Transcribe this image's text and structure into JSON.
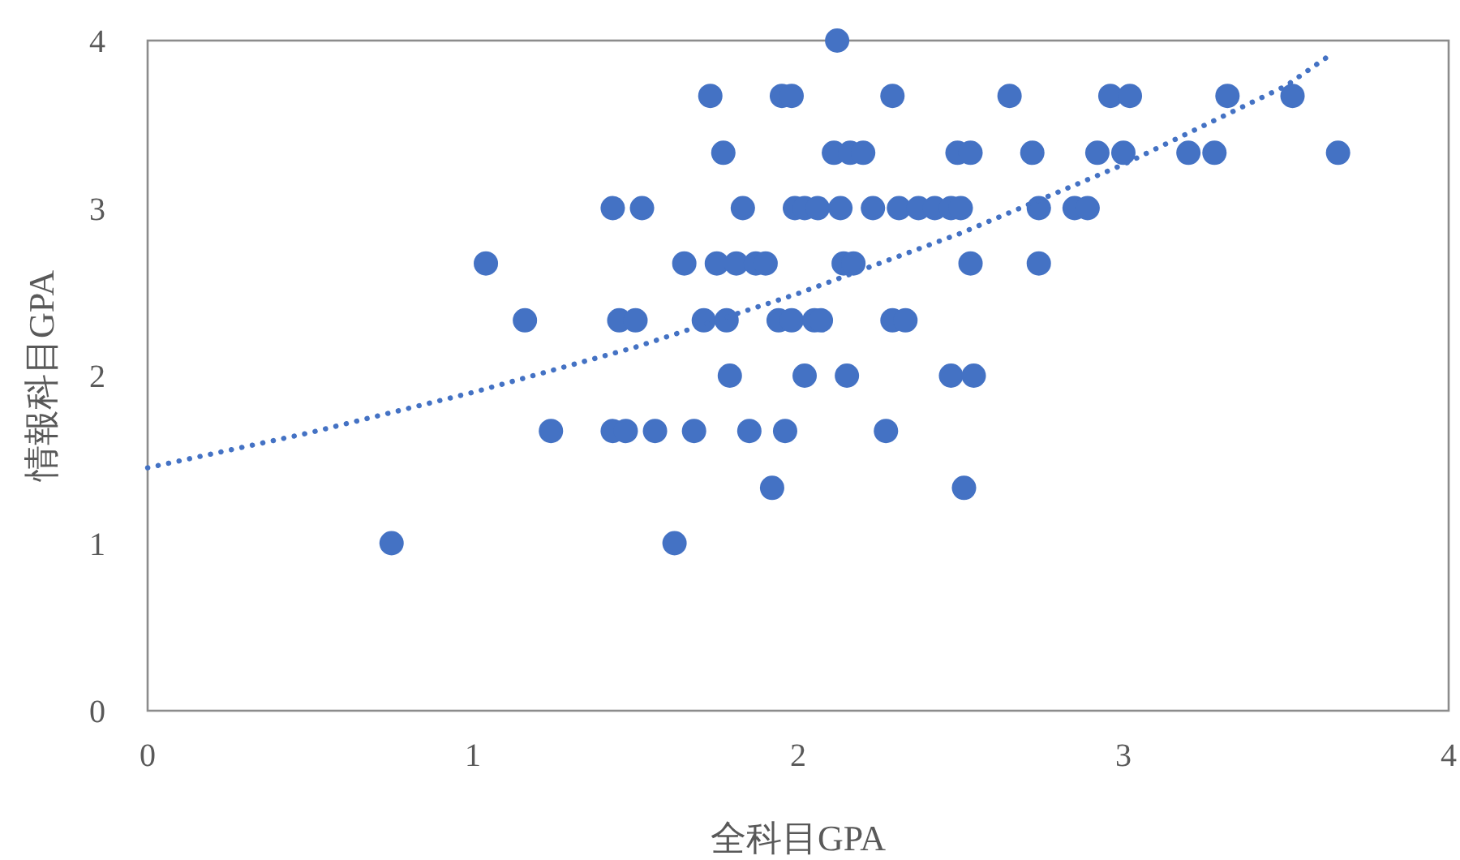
{
  "chart_data": {
    "type": "scatter",
    "xlabel": "全科目GPA",
    "ylabel": "情報科目GPA",
    "xlim": [
      0,
      4
    ],
    "ylim": [
      0,
      4
    ],
    "xticks": [
      0,
      1,
      2,
      3,
      4
    ],
    "yticks": [
      0,
      1,
      2,
      3,
      4
    ],
    "marker": "circle",
    "series": [
      {
        "color": "#4472c4",
        "x": [
          2.12,
          1.73,
          1.95,
          1.98,
          2.29,
          2.65,
          2.96,
          3.02,
          3.32,
          3.52,
          1.77,
          2.11,
          2.16,
          2.2,
          2.49,
          2.53,
          2.72,
          2.92,
          3.0,
          3.2,
          3.28,
          3.66,
          1.43,
          1.52,
          1.83,
          1.99,
          2.02,
          2.06,
          2.13,
          2.23,
          2.31,
          2.37,
          2.42,
          2.47,
          2.5,
          2.74,
          2.85,
          2.89,
          1.04,
          1.65,
          1.75,
          1.81,
          1.87,
          1.9,
          2.14,
          2.17,
          2.53,
          2.74,
          1.16,
          1.45,
          1.5,
          1.71,
          1.78,
          1.94,
          1.98,
          2.05,
          2.07,
          2.29,
          2.33,
          1.79,
          2.02,
          2.15,
          2.47,
          2.54,
          1.24,
          1.43,
          1.47,
          1.56,
          1.68,
          1.85,
          1.96,
          2.27,
          1.92,
          2.51,
          0.75,
          1.62
        ],
        "values": [
          4,
          3.67,
          3.67,
          3.67,
          3.67,
          3.67,
          3.67,
          3.67,
          3.67,
          3.67,
          3.33,
          3.33,
          3.33,
          3.33,
          3.33,
          3.33,
          3.33,
          3.33,
          3.33,
          3.33,
          3.33,
          3.33,
          3,
          3,
          3,
          3,
          3,
          3,
          3,
          3,
          3,
          3,
          3,
          3,
          3,
          3,
          3,
          3,
          2.67,
          2.67,
          2.67,
          2.67,
          2.67,
          2.67,
          2.67,
          2.67,
          2.67,
          2.67,
          2.33,
          2.33,
          2.33,
          2.33,
          2.33,
          2.33,
          2.33,
          2.33,
          2.33,
          2.33,
          2.33,
          2,
          2,
          2,
          2,
          2,
          1.67,
          1.67,
          1.67,
          1.67,
          1.67,
          1.67,
          1.67,
          1.67,
          1.33,
          1.33,
          1,
          1
        ]
      },
      {
        "type": "line",
        "color": "#4472c4",
        "line_style": "dotted",
        "marker": "none",
        "x": [
          0,
          0.5,
          1,
          1.5,
          2,
          2.5,
          3,
          3.5,
          3.64
        ],
        "values": [
          1.45,
          1.66,
          1.9,
          2.17,
          2.49,
          2.85,
          3.26,
          3.73,
          3.92
        ]
      }
    ]
  }
}
